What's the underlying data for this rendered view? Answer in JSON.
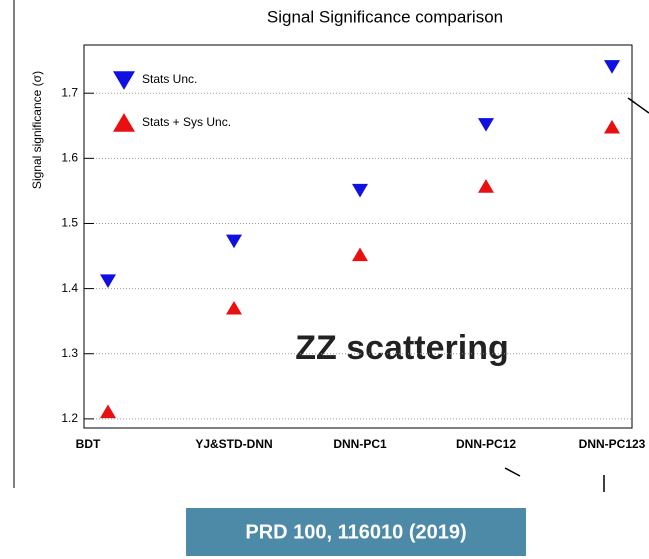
{
  "chart_data": {
    "type": "scatter",
    "title": "Signal Significance comparison",
    "y_label": "Signal significance (σ)",
    "categories": [
      "BDT",
      "YJ&STD-DNN",
      "DNN-PC1",
      "DNN-PC12",
      "DNN-PC123"
    ],
    "series": [
      {
        "name": "Stats Unc.",
        "color": "#1010e0",
        "marker": "triangle-down",
        "values": [
          1.412,
          1.473,
          1.551,
          1.652,
          1.741
        ]
      },
      {
        "name": "Stats + Sys Unc.",
        "color": "#e81010",
        "marker": "triangle-up",
        "values": [
          1.211,
          1.37,
          1.452,
          1.557,
          1.648
        ]
      }
    ],
    "ylim": [
      1.186,
      1.774
    ],
    "yticks": [
      1.2,
      1.3,
      1.4,
      1.5,
      1.6,
      1.7
    ],
    "grid": true,
    "legend": "upper left",
    "annotations": [
      "ZZ scattering",
      "PRD 100, 116010 (2019)"
    ]
  }
}
